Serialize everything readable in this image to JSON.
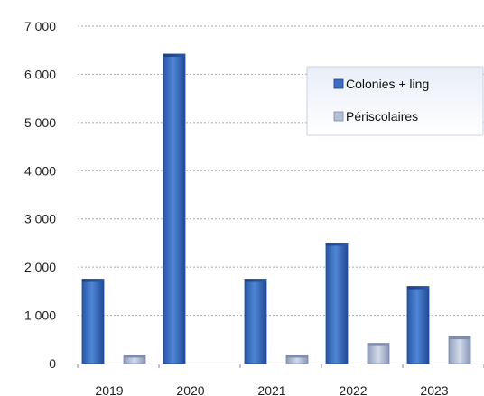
{
  "chart_data": {
    "type": "bar",
    "categories": [
      "2019",
      "2020",
      "2021",
      "2022",
      "2023"
    ],
    "series": [
      {
        "name": "Colonies + ling",
        "values": [
          1750,
          6420,
          1750,
          2500,
          1600
        ]
      },
      {
        "name": "Périscolaires",
        "values": [
          180,
          0,
          180,
          420,
          560
        ]
      }
    ],
    "ylim": [
      0,
      7000
    ],
    "yticks": [
      0,
      1000,
      2000,
      3000,
      4000,
      5000,
      6000,
      7000
    ],
    "ytick_labels": [
      "0",
      "1 000",
      "2 000",
      "3 000",
      "4 000",
      "5 000",
      "6 000",
      "7 000"
    ],
    "grid": true,
    "legend_position": "top-right",
    "colors": {
      "Colonies + ling": "#3a6fc4",
      "Périscolaires": "#b3bfd6"
    }
  }
}
